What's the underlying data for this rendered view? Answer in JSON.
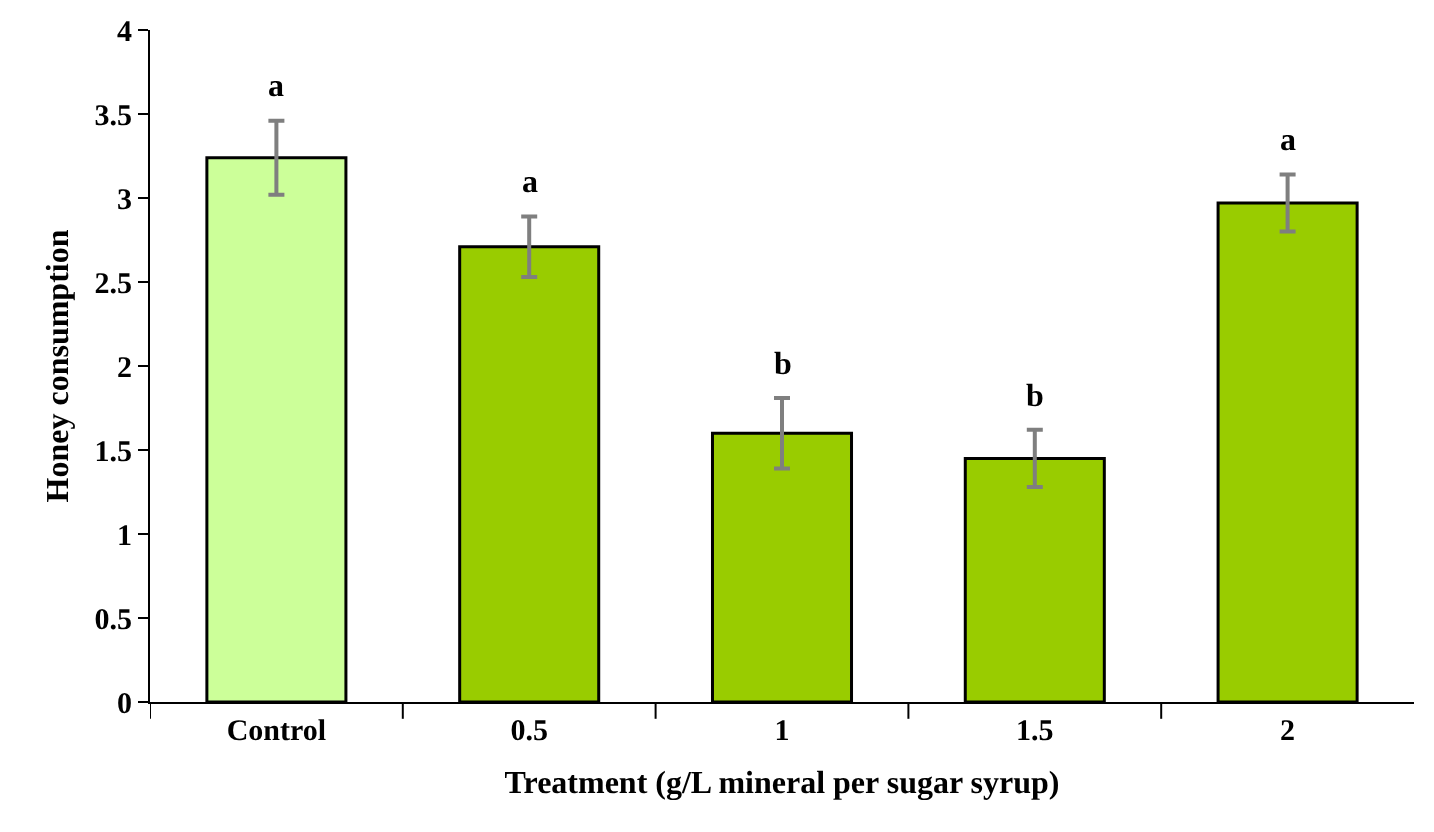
{
  "chart_data": {
    "type": "bar",
    "xlabel": "Treatment (g/L mineral per sugar syrup)",
    "ylabel": "Honey consumption",
    "categories": [
      "Control",
      "0.5",
      "1",
      "1.5",
      "2"
    ],
    "values": [
      3.24,
      2.71,
      1.6,
      1.45,
      2.97
    ],
    "colors": [
      "#ccff99",
      "#99cc00",
      "#99cc00",
      "#99cc00",
      "#99cc00"
    ],
    "errors": [
      0.22,
      0.18,
      0.21,
      0.17,
      0.17
    ],
    "ylim": [
      0,
      4
    ],
    "yticks": [
      0,
      0.5,
      1,
      1.5,
      2,
      2.5,
      3,
      3.5,
      4
    ],
    "grid": false,
    "annotations": [
      {
        "text": "a",
        "x": "Control",
        "y": 3.46
      },
      {
        "text": "a",
        "x": "0.5",
        "y": 2.89
      },
      {
        "text": "b",
        "x": "1",
        "y": 1.81
      },
      {
        "text": "b",
        "x": "1.5",
        "y": 1.62
      },
      {
        "text": "a",
        "x": "2",
        "y": 3.14
      }
    ]
  }
}
